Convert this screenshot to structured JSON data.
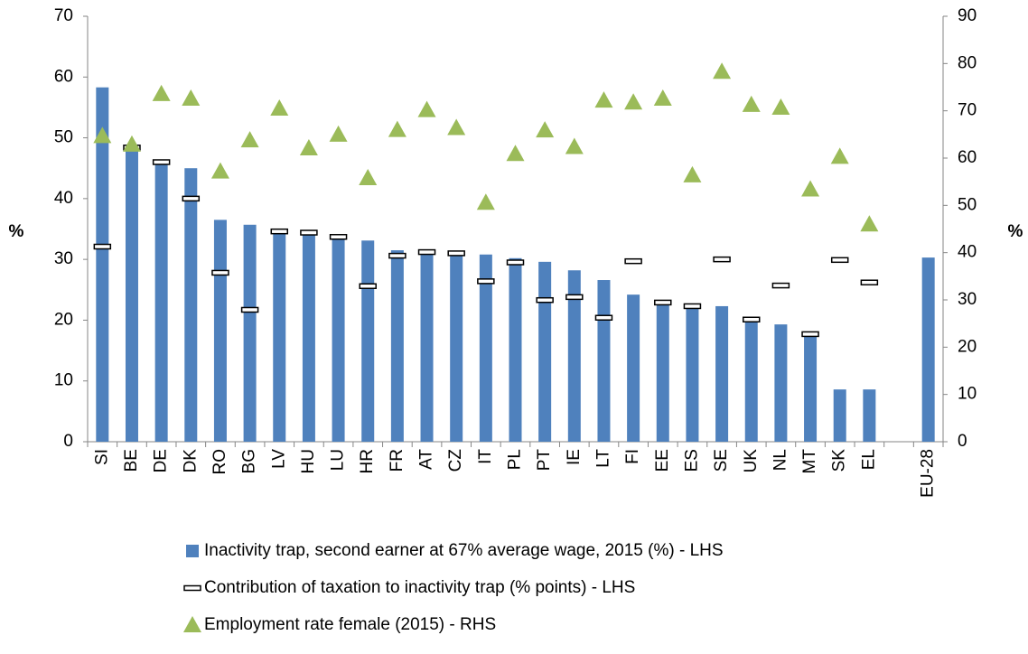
{
  "chart_data": {
    "type": "bar",
    "y_label": "%",
    "y2_label": "%",
    "categories": [
      "SI",
      "BE",
      "DE",
      "DK",
      "RO",
      "BG",
      "LV",
      "HU",
      "LU",
      "HR",
      "FR",
      "AT",
      "CZ",
      "IT",
      "PL",
      "PT",
      "IE",
      "LT",
      "FI",
      "EE",
      "ES",
      "SE",
      "UK",
      "NL",
      "MT",
      "SK",
      "EL",
      null,
      "EU-28"
    ],
    "series": [
      {
        "name": "Inactivity trap, second earner at 67% average wage, 2015 (%) - LHS",
        "mark": "bar",
        "color": "#4f81bd",
        "values": [
          58.3,
          48.9,
          45.9,
          45.0,
          36.5,
          35.7,
          34.6,
          34.3,
          33.7,
          33.1,
          31.5,
          31.2,
          31.1,
          30.8,
          30.2,
          29.6,
          28.2,
          26.6,
          24.2,
          22.7,
          22.1,
          22.3,
          19.9,
          19.3,
          17.5,
          8.6,
          8.6,
          null,
          30.3
        ]
      },
      {
        "name": "Contribution of taxation to inactivity trap (% points) - LHS",
        "mark": "dash",
        "color": "#000000",
        "values": [
          32.1,
          48.4,
          46.0,
          40.0,
          27.8,
          21.7,
          34.6,
          34.4,
          33.7,
          25.6,
          30.6,
          31.2,
          31.0,
          26.4,
          29.5,
          23.3,
          23.8,
          20.4,
          29.7,
          22.9,
          22.3,
          30.0,
          20.1,
          25.7,
          17.7,
          29.9,
          26.2,
          null,
          null
        ]
      },
      {
        "name": "Employment rate female (2015) - RHS",
        "mark": "triangle",
        "color": "#9bbb59",
        "axis": "y2",
        "values": [
          64.7,
          62.9,
          73.6,
          72.6,
          57.2,
          63.8,
          70.5,
          62.1,
          65.0,
          55.8,
          66.0,
          70.2,
          66.4,
          50.6,
          60.9,
          65.9,
          62.4,
          72.2,
          71.8,
          72.6,
          56.4,
          78.3,
          71.3,
          70.7,
          53.4,
          60.3,
          46.0,
          null,
          null
        ]
      }
    ],
    "ylim": [
      0,
      70
    ],
    "yticks": [
      0,
      10,
      20,
      30,
      40,
      50,
      60,
      70
    ],
    "y2lim": [
      0,
      90
    ],
    "y2ticks": [
      0,
      10,
      20,
      30,
      40,
      50,
      60,
      70,
      80,
      90
    ],
    "grid": false
  }
}
